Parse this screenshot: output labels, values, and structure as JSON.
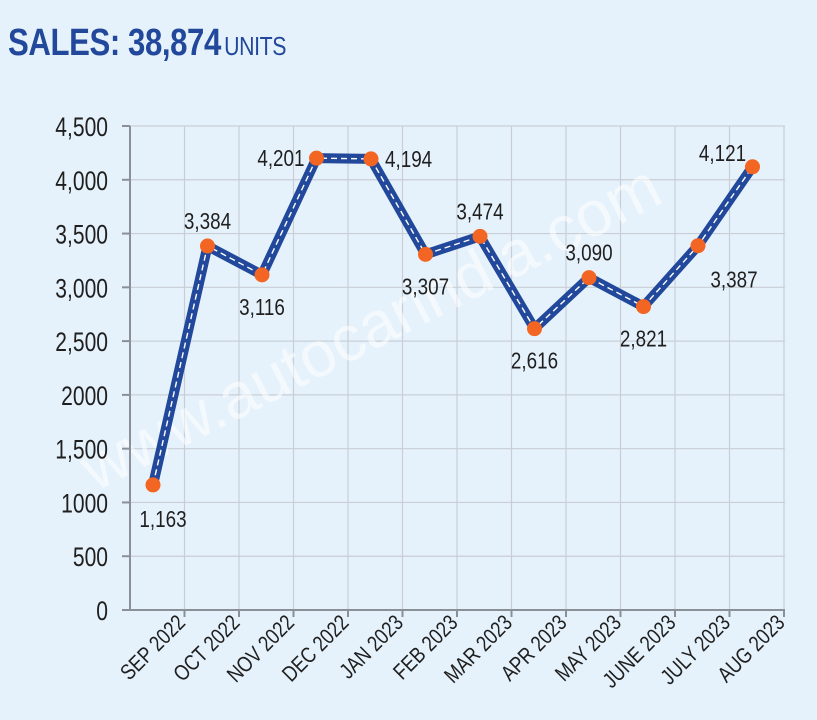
{
  "header": {
    "title": "SALES: 38,874",
    "unit": "UNITS"
  },
  "watermark": "www.autocarindia.com",
  "colors": {
    "background": "#e6f2fb",
    "title": "#22489b",
    "line": "#22489b",
    "marker": "#f26522",
    "grid": "#c9ced6"
  },
  "chart_data": {
    "type": "line",
    "title": "SALES: 38,874 UNITS",
    "categories": [
      "SEP 2022",
      "OCT 2022",
      "NOV 2022",
      "DEC 2022",
      "JAN 2023",
      "FEB 2023",
      "MAR 2023",
      "APR 2023",
      "MAY 2023",
      "JUNE 2023",
      "JULY 2023",
      "AUG 2023"
    ],
    "series": [
      {
        "values": [
          1163,
          3384,
          3116,
          4201,
          4194,
          3307,
          3474,
          2616,
          3090,
          2821,
          3387,
          4121
        ],
        "labels": [
          "1,163",
          "3,384",
          "3,116",
          "4,201",
          "4,194",
          "3,307",
          "3,474",
          "2,616",
          "3,090",
          "2,821",
          "3,387",
          "4,121"
        ]
      }
    ],
    "y_ticks": [
      0,
      500,
      1000,
      1500,
      2000,
      2500,
      3000,
      3500,
      4000,
      4500
    ],
    "y_tick_labels": [
      "0",
      "500",
      "1000",
      "1,500",
      "2000",
      "2,500",
      "3,000",
      "3,500",
      "4,000",
      "4,500"
    ],
    "ylim": [
      0,
      4500
    ],
    "grid": true,
    "xlabel": "",
    "ylabel": ""
  }
}
